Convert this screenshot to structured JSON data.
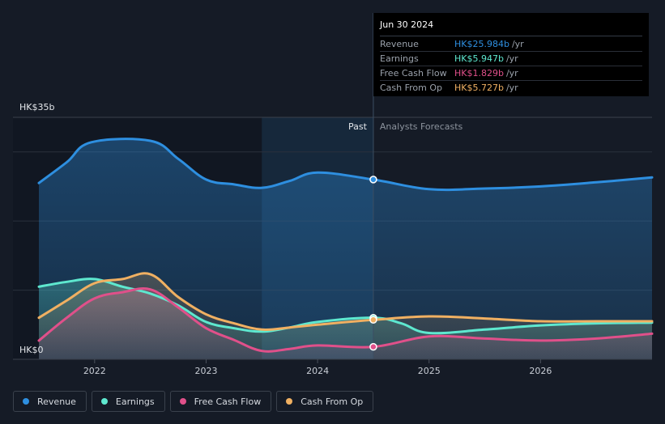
{
  "chart_data": {
    "type": "line",
    "y_top_label": "HK$35b",
    "y_bottom_label": "HK$0",
    "ylim": [
      0,
      35
    ],
    "xlim": [
      2021.5,
      2027.0
    ],
    "x_ticks": [
      2022,
      2023,
      2024,
      2025,
      2026
    ],
    "x_tick_labels": [
      "2022",
      "2023",
      "2024",
      "2025",
      "2026"
    ],
    "past_label": "Past",
    "forecast_label": "Analysts Forecasts",
    "forecast_start": 2024.5,
    "highlight_start": 2023.5,
    "series": [
      {
        "name": "Revenue",
        "color": "#2e8fe0",
        "points": [
          [
            2021.5,
            25.5
          ],
          [
            2021.75,
            28.5
          ],
          [
            2021.97,
            31.4
          ],
          [
            2022.5,
            31.6
          ],
          [
            2022.75,
            29.0
          ],
          [
            2023.0,
            26.0
          ],
          [
            2023.25,
            25.3
          ],
          [
            2023.5,
            24.8
          ],
          [
            2023.75,
            25.8
          ],
          [
            2024.0,
            27.0
          ],
          [
            2024.5,
            26.0
          ],
          [
            2025.0,
            24.6
          ],
          [
            2025.5,
            24.7
          ],
          [
            2026.0,
            25.0
          ],
          [
            2026.5,
            25.6
          ],
          [
            2027.0,
            26.3
          ]
        ]
      },
      {
        "name": "Earnings",
        "color": "#5ee8cf",
        "points": [
          [
            2021.5,
            10.5
          ],
          [
            2021.75,
            11.2
          ],
          [
            2022.0,
            11.6
          ],
          [
            2022.25,
            10.5
          ],
          [
            2022.5,
            9.5
          ],
          [
            2022.75,
            7.8
          ],
          [
            2023.0,
            5.4
          ],
          [
            2023.25,
            4.5
          ],
          [
            2023.5,
            4.0
          ],
          [
            2023.75,
            4.6
          ],
          [
            2024.0,
            5.4
          ],
          [
            2024.5,
            6.0
          ],
          [
            2024.75,
            5.2
          ],
          [
            2025.0,
            3.8
          ],
          [
            2025.5,
            4.3
          ],
          [
            2026.0,
            4.9
          ],
          [
            2026.5,
            5.2
          ],
          [
            2027.0,
            5.3
          ]
        ]
      },
      {
        "name": "Free Cash Flow",
        "color": "#e0508a",
        "points": [
          [
            2021.5,
            2.7
          ],
          [
            2021.75,
            6.0
          ],
          [
            2022.0,
            8.8
          ],
          [
            2022.25,
            9.7
          ],
          [
            2022.5,
            10.1
          ],
          [
            2022.75,
            7.5
          ],
          [
            2023.0,
            4.5
          ],
          [
            2023.25,
            2.8
          ],
          [
            2023.5,
            1.2
          ],
          [
            2023.75,
            1.5
          ],
          [
            2024.0,
            2.0
          ],
          [
            2024.5,
            1.8
          ],
          [
            2025.0,
            3.3
          ],
          [
            2025.5,
            3.0
          ],
          [
            2026.0,
            2.7
          ],
          [
            2026.5,
            3.0
          ],
          [
            2027.0,
            3.7
          ]
        ]
      },
      {
        "name": "Cash From Op",
        "color": "#f0b062",
        "points": [
          [
            2021.5,
            6.0
          ],
          [
            2021.75,
            8.5
          ],
          [
            2022.0,
            11.0
          ],
          [
            2022.25,
            11.6
          ],
          [
            2022.5,
            12.3
          ],
          [
            2022.75,
            9.0
          ],
          [
            2023.0,
            6.5
          ],
          [
            2023.25,
            5.2
          ],
          [
            2023.5,
            4.3
          ],
          [
            2023.75,
            4.6
          ],
          [
            2024.0,
            5.0
          ],
          [
            2024.5,
            5.7
          ],
          [
            2025.0,
            6.2
          ],
          [
            2025.5,
            5.9
          ],
          [
            2026.0,
            5.5
          ],
          [
            2026.5,
            5.5
          ],
          [
            2027.0,
            5.5
          ]
        ]
      }
    ]
  },
  "tooltip": {
    "date": "Jun 30 2024",
    "rows": [
      {
        "label": "Revenue",
        "value": "HK$25.984b",
        "unit": "/yr",
        "color": "#2e8fe0"
      },
      {
        "label": "Earnings",
        "value": "HK$5.947b",
        "unit": "/yr",
        "color": "#5ee8cf"
      },
      {
        "label": "Free Cash Flow",
        "value": "HK$1.829b",
        "unit": "/yr",
        "color": "#e0508a"
      },
      {
        "label": "Cash From Op",
        "value": "HK$5.727b",
        "unit": "/yr",
        "color": "#f0b062"
      }
    ]
  },
  "legend": [
    {
      "label": "Revenue",
      "color": "#2e8fe0"
    },
    {
      "label": "Earnings",
      "color": "#5ee8cf"
    },
    {
      "label": "Free Cash Flow",
      "color": "#e0508a"
    },
    {
      "label": "Cash From Op",
      "color": "#f0b062"
    }
  ]
}
